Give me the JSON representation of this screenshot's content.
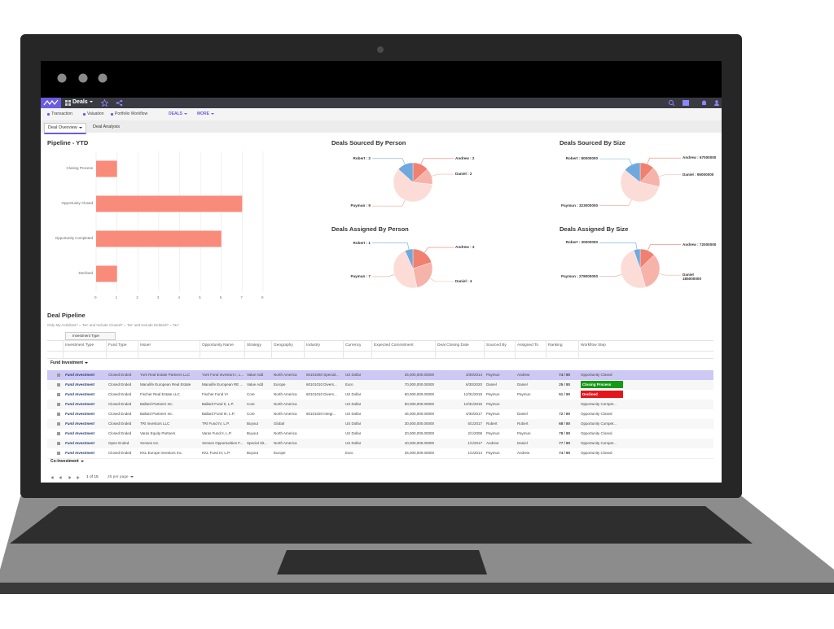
{
  "nav": {
    "app": "Deals",
    "links": [
      "Transaction",
      "Valuation",
      "Portfolio Workflow"
    ],
    "menus": [
      "DEALS",
      "MORE"
    ]
  },
  "tabs": [
    "Deal Overview",
    "Deal Analysis"
  ],
  "pipeline_chart": {
    "type": "bar",
    "orientation": "horizontal",
    "title": "Pipeline - YTD",
    "categories": [
      "Closing Process",
      "Opportunity Closed",
      "Opportunity Completed",
      "Declined"
    ],
    "values": [
      1,
      7,
      6,
      1
    ],
    "color": "#f98b7b",
    "xlim": [
      0,
      8
    ],
    "xticks": [
      0,
      1,
      2,
      3,
      4,
      5,
      6,
      7,
      8
    ],
    "grid": true
  },
  "pies": [
    {
      "type": "pie",
      "title": "Deals Sourced By Person",
      "values": [
        2,
        2,
        9,
        2
      ],
      "value_labels": [
        "Andrew : 2",
        "Daniel : 2",
        "Paymun : 9",
        "Robert : 2"
      ],
      "colors": [
        "#f08070",
        "#f6b3aa",
        "#fcdcd7",
        "#6fa8dc"
      ]
    },
    {
      "type": "pie",
      "title": "Deals Sourced By Size",
      "values": [
        67000000,
        95000000,
        323000000,
        80000000
      ],
      "value_labels": [
        "Andrew : 67000000",
        "Daniel : 95000000",
        "Paymun : 323000000",
        "Robert : 80000000"
      ],
      "colors": [
        "#f08070",
        "#f6b3aa",
        "#fcdcd7",
        "#6fa8dc"
      ]
    },
    {
      "type": "pie",
      "title": "Deals Assigned By Person",
      "values": [
        3,
        4,
        7,
        1
      ],
      "value_labels": [
        "Andrew : 3",
        "Daniel : 4",
        "Paymun : 7",
        "Robert : 1"
      ],
      "colors": [
        "#f08070",
        "#f6b3aa",
        "#fcdcd7",
        "#6fa8dc"
      ]
    },
    {
      "type": "pie",
      "title": "Deals Assigned By Size",
      "values": [
        72000000,
        185000000,
        278000000,
        30000000
      ],
      "value_labels": [
        "Andrew : 72000000",
        "Daniel\n185000000",
        "Paymun : 278000000",
        "Robert : 30000000"
      ],
      "colors": [
        "#f08070",
        "#f6b3aa",
        "#fcdcd7",
        "#6fa8dc"
      ]
    }
  ],
  "pipeline": {
    "title": "Deal Pipeline",
    "filter": "Only My Activities? = 'No' and Include Closed? = 'No' and Include Deleted? = 'No'",
    "group_by": "Investment Type",
    "columns": [
      "Investment Type",
      "Fund Type",
      "Issuer",
      "Opportunity Name",
      "Strategy",
      "Geography",
      "Industry",
      "Currency",
      "Expected Commitment",
      "Deal Closing Date",
      "Sourced By",
      "Assigned To",
      "Ranking",
      "Workflow Step"
    ],
    "groups": [
      {
        "label": "Fund Investment",
        "rows": [
          [
            "Fund Investment",
            "Closed Ended",
            "York Real Estate Partners LLC",
            "York Fund Investors I, L...",
            "Value Add",
            "North America",
            "60101060 Special...",
            "US Dollar",
            "25,000,000.00000",
            "3/30/2014",
            "Paymun",
            "Andrew",
            "74 / 80",
            "Opportunity Closed"
          ],
          [
            "Fund Investment",
            "Closed Ended",
            "Manulife European Real Estate",
            "Manulife European RE ...",
            "Value Add",
            "Europe",
            "60101010 Divers...",
            "Euro",
            "70,000,000.00000",
            "6/30/2020",
            "Daniel",
            "Daniel",
            "25 / 80",
            "Closing Process"
          ],
          [
            "Fund Investment",
            "Closed Ended",
            "Fischer Real Estate LLC",
            "Fischer Fund VI",
            "Core",
            "North America",
            "60101010 Divers...",
            "US Dollar",
            "60,000,000.00000",
            "12/31/2019",
            "Paymun",
            "Paymun",
            "51 / 80",
            "Declined"
          ],
          [
            "Fund Investment",
            "Closed Ended",
            "Ballard Partners Inc.",
            "Ballard Fund II, L.P.",
            "Core",
            "North America",
            null,
            "US Dollar",
            "50,000,000.00000",
            "12/31/2015",
            "Paymun",
            null,
            null,
            "Opportunity Compet..."
          ],
          [
            "Fund Investment",
            "Closed Ended",
            "Ballard Partners Inc.",
            "Ballard Fund III, L.P.",
            "Core",
            "North America",
            "60101020 Integr...",
            "US Dollar",
            "45,000,000.00000",
            "4/30/2017",
            "Paymun",
            "Daniel",
            "72 / 80",
            "Opportunity Closed"
          ],
          [
            "Fund Investment",
            "Closed Ended",
            "TRI Investors LLC",
            "TRI Fund IV, L.P.",
            "Buyout",
            "Global",
            null,
            "US Dollar",
            "30,000,000.00000",
            "5/1/2017",
            "Robert",
            "Robert",
            "68 / 80",
            "Opportunity Compet..."
          ],
          [
            "Fund Investment",
            "Closed Ended",
            "Varas Equity Partners",
            "Varas Fund II, L.P.",
            "Buyout",
            "North America",
            null,
            "US Dollar",
            "20,000,000.00000",
            "2/1/2008",
            "Paymun",
            "Paymun",
            "78 / 80",
            "Opportunity Closed"
          ],
          [
            "Fund Investment",
            "Open Ended",
            "Xenses Inc.",
            "Xenses Opportunities F...",
            "Special Sit...",
            "North America",
            null,
            "US Dollar",
            "40,000,000.00000",
            "1/1/2017",
            "Andrew",
            "Daniel",
            "77 / 80",
            "Opportunity Compet..."
          ],
          [
            "Fund Investment",
            "Closed Ended",
            "KKL Europe Investors Inc.",
            "KKL Fund III, L.P.",
            "Buyout",
            "Europe",
            null,
            "Euro",
            "25,000,000.00000",
            "1/1/2014",
            "Paymun",
            "Andrew",
            "74 / 80",
            "Opportunity Closed"
          ]
        ]
      },
      {
        "label": "Co-Investment"
      }
    ],
    "workflow_colors": {
      "Closing Process": "#169a16",
      "Declined": "#e4161c"
    },
    "pager": {
      "page": "1 of 15",
      "per_page": "25 per page"
    }
  }
}
